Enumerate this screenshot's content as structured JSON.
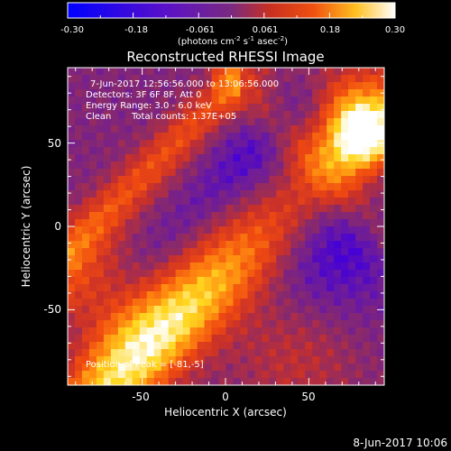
{
  "colorbar": {
    "ticks": [
      "-0.30",
      "-0.18",
      "-0.061",
      "0.061",
      "0.18",
      "0.30"
    ],
    "units": {
      "base": "(photons cm",
      "exp1": "-2",
      "mid1": " s",
      "exp2": "-1",
      "mid2": " asec",
      "exp3": "-2",
      "tail": ")"
    },
    "colors": [
      "#0000ff",
      "#4400d8",
      "#6a1aa0",
      "#8a2a6a",
      "#c8302a",
      "#f04a10",
      "#ff8a10",
      "#ffd820",
      "#ffffff"
    ]
  },
  "title": "Reconstructed RHESSI Image",
  "info": {
    "line1": "7-Jun-2017 12:56:56.000 to 13:06:56.000",
    "line2": "Detectors: 3F 6F 8F, Att 0",
    "line3": "Energy Range: 3.0 - 6.0 keV",
    "line4_a": "Clean",
    "line4_b": "Total counts: 1.37E+05",
    "peak": "Position of Peak = [-81,-5]"
  },
  "axes": {
    "xlabel": "Heliocentric X (arcsec)",
    "ylabel": "Heliocentric Y (arcsec)",
    "xticks": [
      "-50",
      "0",
      "50"
    ],
    "yticks": [
      "50",
      "0",
      "-50"
    ]
  },
  "timestamp": "8-Jun-2017 10:06"
}
